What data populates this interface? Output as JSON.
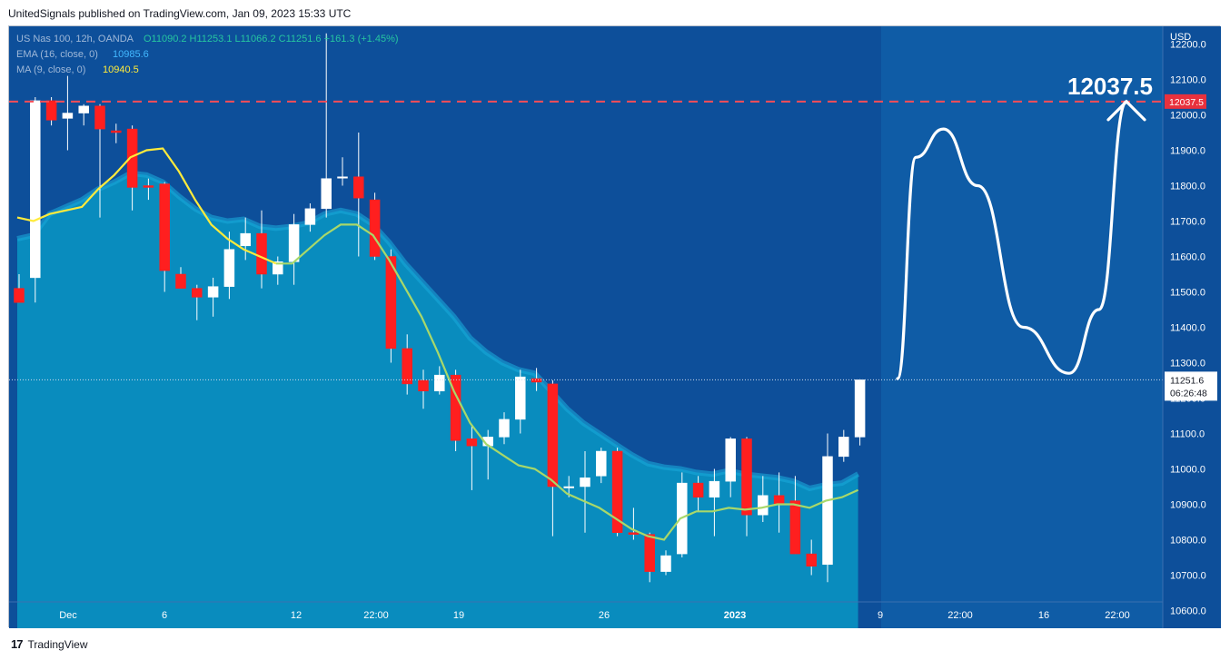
{
  "header": {
    "publisher_line": "UnitedSignals published on TradingView.com, Jan 09, 2023 15:33 UTC"
  },
  "footer": {
    "brand": "TradingView",
    "brand_mark": "17"
  },
  "legend": {
    "symbol": "US Nas 100, 12h, OANDA",
    "ohlc": "O11090.2  H11253.1  L11066.2  C11251.6  +161.3 (+1.45%)",
    "ema_label": "EMA (16, close, 0)",
    "ema_value": "10985.6",
    "ma_label": "MA (9, close, 0)",
    "ma_value": "10940.5"
  },
  "colors": {
    "background": "#0d4f9a",
    "future_background": "#0f5ca6",
    "area_fill": "#0a8fc0",
    "area_edge": "#19a7d8",
    "ema_line_top": "#ffeb3b",
    "ema_line": "#a8d86a",
    "bull": "#ffffff",
    "bear": "#ff1f1f",
    "target_line": "#ff4d57",
    "target_badge": "#e8313d",
    "axis_text": "#ffffff"
  },
  "chart_data": {
    "type": "candlestick",
    "currency": "USD",
    "ylim": [
      10550,
      12250
    ],
    "y_ticks": [
      "12200.0",
      "12100.0",
      "12000.0",
      "11900.0",
      "11800.0",
      "11700.0",
      "11600.0",
      "11500.0",
      "11400.0",
      "11300.0",
      "11200.0",
      "11100.0",
      "11000.0",
      "10900.0",
      "10800.0",
      "10700.0",
      "10600.0"
    ],
    "x_tick_labels": [
      "Dec",
      "6",
      "12",
      "22:00",
      "19",
      "26",
      "2023",
      "9",
      "22:00",
      "16",
      "22:00"
    ],
    "candles": [
      {
        "o": 11510,
        "h": 11550,
        "l": 11470,
        "c": 11470
      },
      {
        "o": 11540,
        "h": 12050,
        "l": 11470,
        "c": 12040
      },
      {
        "o": 12040,
        "h": 12050,
        "l": 11970,
        "c": 11985
      },
      {
        "o": 11990,
        "h": 12110,
        "l": 11900,
        "c": 12005
      },
      {
        "o": 12005,
        "h": 12030,
        "l": 11970,
        "c": 12025
      },
      {
        "o": 12025,
        "h": 12030,
        "l": 11710,
        "c": 11960
      },
      {
        "o": 11955,
        "h": 11975,
        "l": 11920,
        "c": 11950
      },
      {
        "o": 11960,
        "h": 11970,
        "l": 11730,
        "c": 11795
      },
      {
        "o": 11800,
        "h": 11820,
        "l": 11760,
        "c": 11795
      },
      {
        "o": 11805,
        "h": 11810,
        "l": 11500,
        "c": 11560
      },
      {
        "o": 11550,
        "h": 11570,
        "l": 11510,
        "c": 11510
      },
      {
        "o": 11510,
        "h": 11520,
        "l": 11420,
        "c": 11485
      },
      {
        "o": 11485,
        "h": 11540,
        "l": 11430,
        "c": 11515
      },
      {
        "o": 11515,
        "h": 11670,
        "l": 11480,
        "c": 11620
      },
      {
        "o": 11630,
        "h": 11710,
        "l": 11590,
        "c": 11665
      },
      {
        "o": 11665,
        "h": 11730,
        "l": 11510,
        "c": 11550
      },
      {
        "o": 11550,
        "h": 11600,
        "l": 11520,
        "c": 11585
      },
      {
        "o": 11585,
        "h": 11720,
        "l": 11520,
        "c": 11690
      },
      {
        "o": 11690,
        "h": 11750,
        "l": 11670,
        "c": 11735
      },
      {
        "o": 11735,
        "h": 12230,
        "l": 11710,
        "c": 11820
      },
      {
        "o": 11825,
        "h": 11880,
        "l": 11800,
        "c": 11825
      },
      {
        "o": 11825,
        "h": 11950,
        "l": 11600,
        "c": 11765
      },
      {
        "o": 11760,
        "h": 11780,
        "l": 11590,
        "c": 11600
      },
      {
        "o": 11600,
        "h": 11620,
        "l": 11300,
        "c": 11340
      },
      {
        "o": 11340,
        "h": 11380,
        "l": 11210,
        "c": 11240
      },
      {
        "o": 11250,
        "h": 11280,
        "l": 11170,
        "c": 11220
      },
      {
        "o": 11220,
        "h": 11290,
        "l": 11210,
        "c": 11265
      },
      {
        "o": 11265,
        "h": 11280,
        "l": 11050,
        "c": 11080
      },
      {
        "o": 11085,
        "h": 11120,
        "l": 10940,
        "c": 11065
      },
      {
        "o": 11065,
        "h": 11110,
        "l": 10970,
        "c": 11090
      },
      {
        "o": 11090,
        "h": 11160,
        "l": 11070,
        "c": 11140
      },
      {
        "o": 11140,
        "h": 11280,
        "l": 11100,
        "c": 11260
      },
      {
        "o": 11255,
        "h": 11285,
        "l": 11220,
        "c": 11245
      },
      {
        "o": 11240,
        "h": 11250,
        "l": 10810,
        "c": 10950
      },
      {
        "o": 10950,
        "h": 10980,
        "l": 10920,
        "c": 10950
      },
      {
        "o": 10950,
        "h": 11050,
        "l": 10820,
        "c": 10975
      },
      {
        "o": 10980,
        "h": 11060,
        "l": 10960,
        "c": 11050
      },
      {
        "o": 11050,
        "h": 11060,
        "l": 10810,
        "c": 10820
      },
      {
        "o": 10820,
        "h": 10890,
        "l": 10800,
        "c": 10815
      },
      {
        "o": 10815,
        "h": 10820,
        "l": 10680,
        "c": 10710
      },
      {
        "o": 10710,
        "h": 10770,
        "l": 10700,
        "c": 10755
      },
      {
        "o": 10760,
        "h": 10990,
        "l": 10750,
        "c": 10960
      },
      {
        "o": 10960,
        "h": 10980,
        "l": 10880,
        "c": 10920
      },
      {
        "o": 10920,
        "h": 11000,
        "l": 10810,
        "c": 10965
      },
      {
        "o": 10965,
        "h": 11090,
        "l": 10920,
        "c": 11085
      },
      {
        "o": 11085,
        "h": 11090,
        "l": 10810,
        "c": 10870
      },
      {
        "o": 10870,
        "h": 10980,
        "l": 10850,
        "c": 10925
      },
      {
        "o": 10925,
        "h": 10990,
        "l": 10820,
        "c": 10900
      },
      {
        "o": 10910,
        "h": 10980,
        "l": 10760,
        "c": 10760
      },
      {
        "o": 10760,
        "h": 10800,
        "l": 10700,
        "c": 10725
      },
      {
        "o": 10730,
        "h": 11100,
        "l": 10680,
        "c": 11035
      },
      {
        "o": 11035,
        "h": 11110,
        "l": 11020,
        "c": 11090
      },
      {
        "o": 11090,
        "h": 11253.1,
        "l": 11066.2,
        "c": 11251.6
      }
    ],
    "ema": [
      11650,
      11660,
      11720,
      11740,
      11760,
      11790,
      11810,
      11835,
      11830,
      11810,
      11770,
      11735,
      11710,
      11700,
      11705,
      11685,
      11680,
      11685,
      11695,
      11720,
      11730,
      11720,
      11690,
      11640,
      11580,
      11530,
      11480,
      11430,
      11370,
      11330,
      11300,
      11280,
      11270,
      11220,
      11170,
      11130,
      11100,
      11070,
      11040,
      11015,
      11005,
      11000,
      10990,
      10985,
      10995,
      10985,
      10980,
      10975,
      10965,
      10945,
      10955,
      10960,
      10985.6
    ],
    "ma": [
      11710,
      11700,
      11720,
      11730,
      11740,
      11790,
      11830,
      11880,
      11900,
      11905,
      11840,
      11760,
      11690,
      11650,
      11620,
      11600,
      11580,
      11580,
      11620,
      11660,
      11690,
      11690,
      11660,
      11590,
      11510,
      11430,
      11330,
      11220,
      11130,
      11070,
      11040,
      11010,
      11000,
      10970,
      10930,
      10910,
      10890,
      10860,
      10830,
      10810,
      10800,
      10860,
      10880,
      10880,
      10890,
      10885,
      10890,
      10900,
      10900,
      10890,
      10910,
      10920,
      10940.5
    ],
    "last_price_label": "11251.6",
    "countdown_label": "06:26:48",
    "last_price": 11251.6,
    "target_price": 12037.5,
    "target_label": "12037.5",
    "projection_path": [
      {
        "t": 0.0,
        "y": 11255
      },
      {
        "t": 0.08,
        "y": 11880
      },
      {
        "t": 0.2,
        "y": 11960
      },
      {
        "t": 0.35,
        "y": 11800
      },
      {
        "t": 0.55,
        "y": 11400
      },
      {
        "t": 0.75,
        "y": 11270
      },
      {
        "t": 0.88,
        "y": 11450
      },
      {
        "t": 1.0,
        "y": 12037.5
      }
    ]
  }
}
